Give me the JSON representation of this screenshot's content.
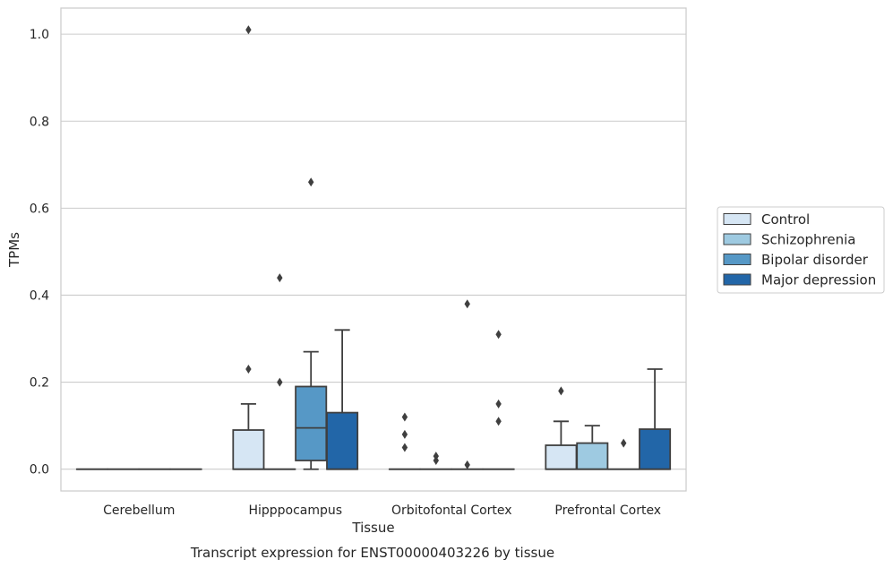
{
  "chart_data": {
    "type": "box",
    "title": "Transcript expression for ENST00000403226 by tissue",
    "xlabel": "Tissue",
    "ylabel": "TPMs",
    "ylim": [
      -0.05,
      1.06
    ],
    "yticks": [
      0.0,
      0.2,
      0.4,
      0.6,
      0.8,
      1.0
    ],
    "ytick_labels": [
      "0.0",
      "0.2",
      "0.4",
      "0.6",
      "0.8",
      "1.0"
    ],
    "grid": true,
    "legend_position": "right",
    "categories": [
      "Cerebellum",
      "Hipppocampus",
      "Orbitofontal Cortex",
      "Prefrontal Cortex"
    ],
    "series": [
      {
        "name": "Control",
        "color": "#d6e6f4",
        "boxes": [
          {
            "q1": 0,
            "median": 0,
            "q3": 0,
            "whisker_low": 0,
            "whisker_high": 0,
            "outliers": []
          },
          {
            "q1": 0,
            "median": 0,
            "q3": 0.09,
            "whisker_low": 0,
            "whisker_high": 0.15,
            "outliers": [
              0.23,
              1.01
            ]
          },
          {
            "q1": 0,
            "median": 0,
            "q3": 0,
            "whisker_low": 0,
            "whisker_high": 0,
            "outliers": [
              0.05,
              0.08,
              0.12
            ]
          },
          {
            "q1": 0,
            "median": 0,
            "q3": 0.055,
            "whisker_low": 0,
            "whisker_high": 0.11,
            "outliers": [
              0.18
            ]
          }
        ]
      },
      {
        "name": "Schizophrenia",
        "color": "#9ecae1",
        "boxes": [
          {
            "q1": 0,
            "median": 0,
            "q3": 0,
            "whisker_low": 0,
            "whisker_high": 0,
            "outliers": []
          },
          {
            "q1": 0,
            "median": 0,
            "q3": 0,
            "whisker_low": 0,
            "whisker_high": 0,
            "outliers": [
              0.2,
              0.44
            ]
          },
          {
            "q1": 0,
            "median": 0,
            "q3": 0,
            "whisker_low": 0,
            "whisker_high": 0,
            "outliers": [
              0.02,
              0.03
            ]
          },
          {
            "q1": 0,
            "median": 0,
            "q3": 0.06,
            "whisker_low": 0,
            "whisker_high": 0.1,
            "outliers": []
          }
        ]
      },
      {
        "name": "Bipolar disorder",
        "color": "#5698c6",
        "boxes": [
          {
            "q1": 0,
            "median": 0,
            "q3": 0,
            "whisker_low": 0,
            "whisker_high": 0,
            "outliers": []
          },
          {
            "q1": 0.02,
            "median": 0.095,
            "q3": 0.19,
            "whisker_low": 0,
            "whisker_high": 0.27,
            "outliers": [
              0.66
            ]
          },
          {
            "q1": 0,
            "median": 0,
            "q3": 0,
            "whisker_low": 0,
            "whisker_high": 0,
            "outliers": [
              0.01,
              0.38
            ]
          },
          {
            "q1": 0,
            "median": 0,
            "q3": 0,
            "whisker_low": 0,
            "whisker_high": 0,
            "outliers": [
              0.06
            ]
          }
        ]
      },
      {
        "name": "Major depression",
        "color": "#2266a8",
        "boxes": [
          {
            "q1": 0,
            "median": 0,
            "q3": 0,
            "whisker_low": 0,
            "whisker_high": 0,
            "outliers": []
          },
          {
            "q1": 0,
            "median": 0,
            "q3": 0.13,
            "whisker_low": 0,
            "whisker_high": 0.32,
            "outliers": []
          },
          {
            "q1": 0,
            "median": 0,
            "q3": 0,
            "whisker_low": 0,
            "whisker_high": 0,
            "outliers": [
              0.11,
              0.15,
              0.31
            ]
          },
          {
            "q1": 0,
            "median": 0,
            "q3": 0.092,
            "whisker_low": 0,
            "whisker_high": 0.23,
            "outliers": []
          }
        ]
      }
    ]
  }
}
